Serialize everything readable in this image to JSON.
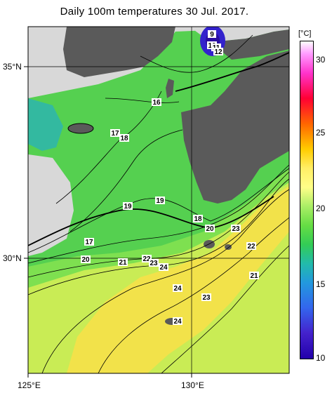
{
  "title": "Daily 100m temperatures 30 Jul. 2017.",
  "axes": {
    "lon_labels": [
      "125°E",
      "130°E"
    ],
    "lat_labels": [
      "35°N",
      "30°N"
    ]
  },
  "colorbar": {
    "unit": "[°C]",
    "ticks": [
      "30",
      "25",
      "20",
      "15",
      "10"
    ],
    "range": [
      10,
      31
    ]
  },
  "contour_labels": [
    {
      "text": "9"
    },
    {
      "text": "10"
    },
    {
      "text": "11"
    },
    {
      "text": "12"
    },
    {
      "text": "16"
    },
    {
      "text": "17"
    },
    {
      "text": "18"
    },
    {
      "text": "19"
    },
    {
      "text": "19"
    },
    {
      "text": "18"
    },
    {
      "text": "20"
    },
    {
      "text": "23"
    },
    {
      "text": "17"
    },
    {
      "text": "20"
    },
    {
      "text": "21"
    },
    {
      "text": "22"
    },
    {
      "text": "23"
    },
    {
      "text": "24"
    },
    {
      "text": "22"
    },
    {
      "text": "24"
    },
    {
      "text": "21"
    },
    {
      "text": "23"
    },
    {
      "text": "24"
    }
  ],
  "colors": {
    "land": "#5a5a5a",
    "no_data": "#d8d8d8",
    "warm": "#f2e24a",
    "mid": "#66dd44",
    "cool": "#22bbaa",
    "cold": "#3322cc"
  }
}
